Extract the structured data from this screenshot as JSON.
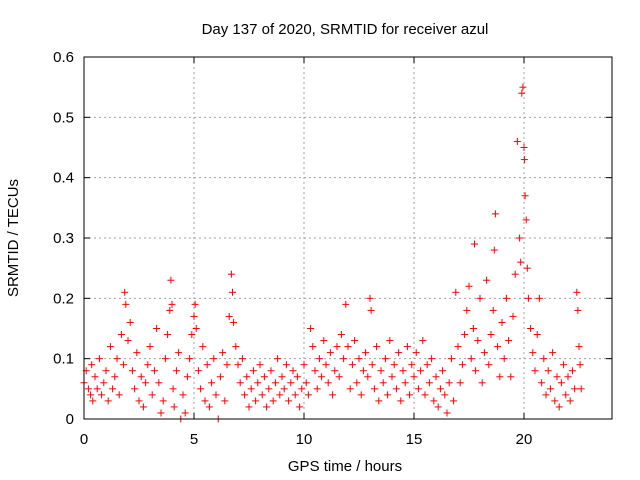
{
  "chart_data": {
    "type": "scatter",
    "title": "Day 137 of 2020, SRMTID for receiver azul",
    "xlabel": "GPS time / hours",
    "ylabel": "SRMTID / TECUs",
    "xlim": [
      0,
      24
    ],
    "ylim": [
      0,
      0.6
    ],
    "xticks": [
      0,
      5,
      10,
      15,
      20
    ],
    "yticks": [
      0,
      0.1,
      0.2,
      0.3,
      0.4,
      0.5,
      0.6
    ],
    "xtick_labels": [
      "0",
      "5",
      "10",
      "15",
      "20"
    ],
    "ytick_labels": [
      "0",
      "0.1",
      "0.2",
      "0.3",
      "0.4",
      "0.5",
      "0.6"
    ],
    "grid": true,
    "marker": "+",
    "color": "#ff0000",
    "series": [
      {
        "name": "SRMTID",
        "points": [
          [
            0.0,
            0.06
          ],
          [
            0.1,
            0.08
          ],
          [
            0.2,
            0.05
          ],
          [
            0.3,
            0.04
          ],
          [
            0.35,
            0.09
          ],
          [
            0.4,
            0.03
          ],
          [
            0.5,
            0.07
          ],
          [
            0.6,
            0.05
          ],
          [
            0.7,
            0.1
          ],
          [
            0.8,
            0.04
          ],
          [
            0.9,
            0.06
          ],
          [
            1.0,
            0.08
          ],
          [
            1.1,
            0.03
          ],
          [
            1.2,
            0.12
          ],
          [
            1.3,
            0.05
          ],
          [
            1.4,
            0.07
          ],
          [
            1.5,
            0.1
          ],
          [
            1.6,
            0.04
          ],
          [
            1.7,
            0.14
          ],
          [
            1.8,
            0.09
          ],
          [
            1.85,
            0.21
          ],
          [
            1.9,
            0.19
          ],
          [
            2.0,
            0.13
          ],
          [
            2.1,
            0.16
          ],
          [
            2.2,
            0.08
          ],
          [
            2.3,
            0.05
          ],
          [
            2.4,
            0.11
          ],
          [
            2.5,
            0.03
          ],
          [
            2.6,
            0.07
          ],
          [
            2.7,
            0.02
          ],
          [
            2.8,
            0.06
          ],
          [
            2.9,
            0.09
          ],
          [
            3.0,
            0.12
          ],
          [
            3.1,
            0.04
          ],
          [
            3.2,
            0.08
          ],
          [
            3.3,
            0.15
          ],
          [
            3.4,
            0.06
          ],
          [
            3.5,
            0.01
          ],
          [
            3.6,
            0.03
          ],
          [
            3.7,
            0.1
          ],
          [
            3.8,
            0.14
          ],
          [
            3.9,
            0.18
          ],
          [
            3.95,
            0.23
          ],
          [
            4.0,
            0.19
          ],
          [
            4.05,
            0.05
          ],
          [
            4.1,
            0.02
          ],
          [
            4.2,
            0.08
          ],
          [
            4.3,
            0.11
          ],
          [
            4.4,
            0.0
          ],
          [
            4.5,
            0.04
          ],
          [
            4.6,
            0.01
          ],
          [
            4.7,
            0.07
          ],
          [
            4.8,
            0.1
          ],
          [
            4.9,
            0.14
          ],
          [
            5.0,
            0.17
          ],
          [
            5.05,
            0.19
          ],
          [
            5.1,
            0.15
          ],
          [
            5.2,
            0.08
          ],
          [
            5.3,
            0.05
          ],
          [
            5.4,
            0.12
          ],
          [
            5.5,
            0.03
          ],
          [
            5.6,
            0.09
          ],
          [
            5.7,
            0.02
          ],
          [
            5.8,
            0.06
          ],
          [
            5.9,
            0.1
          ],
          [
            6.0,
            0.04
          ],
          [
            6.1,
            0.0
          ],
          [
            6.2,
            0.07
          ],
          [
            6.3,
            0.11
          ],
          [
            6.4,
            0.03
          ],
          [
            6.5,
            0.09
          ],
          [
            6.6,
            0.17
          ],
          [
            6.7,
            0.24
          ],
          [
            6.75,
            0.21
          ],
          [
            6.8,
            0.16
          ],
          [
            6.9,
            0.12
          ],
          [
            7.0,
            0.09
          ],
          [
            7.1,
            0.06
          ],
          [
            7.2,
            0.1
          ],
          [
            7.3,
            0.04
          ],
          [
            7.4,
            0.07
          ],
          [
            7.5,
            0.02
          ],
          [
            7.6,
            0.05
          ],
          [
            7.7,
            0.08
          ],
          [
            7.8,
            0.03
          ],
          [
            7.9,
            0.06
          ],
          [
            8.0,
            0.09
          ],
          [
            8.1,
            0.04
          ],
          [
            8.2,
            0.07
          ],
          [
            8.3,
            0.02
          ],
          [
            8.4,
            0.05
          ],
          [
            8.5,
            0.08
          ],
          [
            8.6,
            0.03
          ],
          [
            8.7,
            0.06
          ],
          [
            8.8,
            0.1
          ],
          [
            8.9,
            0.04
          ],
          [
            9.0,
            0.07
          ],
          [
            9.1,
            0.05
          ],
          [
            9.2,
            0.09
          ],
          [
            9.3,
            0.03
          ],
          [
            9.4,
            0.06
          ],
          [
            9.5,
            0.08
          ],
          [
            9.6,
            0.04
          ],
          [
            9.7,
            0.07
          ],
          [
            9.8,
            0.02
          ],
          [
            9.9,
            0.05
          ],
          [
            10.0,
            0.09
          ],
          [
            10.1,
            0.06
          ],
          [
            10.2,
            0.04
          ],
          [
            10.3,
            0.15
          ],
          [
            10.4,
            0.12
          ],
          [
            10.5,
            0.08
          ],
          [
            10.6,
            0.05
          ],
          [
            10.7,
            0.1
          ],
          [
            10.8,
            0.07
          ],
          [
            10.9,
            0.13
          ],
          [
            11.0,
            0.09
          ],
          [
            11.1,
            0.06
          ],
          [
            11.2,
            0.11
          ],
          [
            11.3,
            0.04
          ],
          [
            11.4,
            0.08
          ],
          [
            11.5,
            0.12
          ],
          [
            11.6,
            0.07
          ],
          [
            11.7,
            0.14
          ],
          [
            11.8,
            0.1
          ],
          [
            11.9,
            0.19
          ],
          [
            12.0,
            0.12
          ],
          [
            12.1,
            0.05
          ],
          [
            12.2,
            0.09
          ],
          [
            12.3,
            0.13
          ],
          [
            12.4,
            0.06
          ],
          [
            12.5,
            0.1
          ],
          [
            12.6,
            0.04
          ],
          [
            12.7,
            0.08
          ],
          [
            12.8,
            0.11
          ],
          [
            12.9,
            0.07
          ],
          [
            13.0,
            0.2
          ],
          [
            13.05,
            0.18
          ],
          [
            13.1,
            0.09
          ],
          [
            13.2,
            0.05
          ],
          [
            13.3,
            0.12
          ],
          [
            13.4,
            0.03
          ],
          [
            13.5,
            0.08
          ],
          [
            13.6,
            0.06
          ],
          [
            13.7,
            0.1
          ],
          [
            13.8,
            0.04
          ],
          [
            13.9,
            0.13
          ],
          [
            14.0,
            0.07
          ],
          [
            14.1,
            0.09
          ],
          [
            14.2,
            0.05
          ],
          [
            14.3,
            0.11
          ],
          [
            14.4,
            0.03
          ],
          [
            14.5,
            0.08
          ],
          [
            14.6,
            0.06
          ],
          [
            14.7,
            0.12
          ],
          [
            14.8,
            0.04
          ],
          [
            14.9,
            0.09
          ],
          [
            15.0,
            0.07
          ],
          [
            15.1,
            0.11
          ],
          [
            15.2,
            0.05
          ],
          [
            15.3,
            0.08
          ],
          [
            15.4,
            0.13
          ],
          [
            15.5,
            0.04
          ],
          [
            15.6,
            0.09
          ],
          [
            15.7,
            0.06
          ],
          [
            15.8,
            0.1
          ],
          [
            15.9,
            0.03
          ],
          [
            16.0,
            0.07
          ],
          [
            16.1,
            0.02
          ],
          [
            16.2,
            0.05
          ],
          [
            16.3,
            0.08
          ],
          [
            16.4,
            0.04
          ],
          [
            16.5,
            0.01
          ],
          [
            16.6,
            0.06
          ],
          [
            16.7,
            0.1
          ],
          [
            16.8,
            0.03
          ],
          [
            16.9,
            0.21
          ],
          [
            17.0,
            0.12
          ],
          [
            17.1,
            0.06
          ],
          [
            17.2,
            0.09
          ],
          [
            17.3,
            0.14
          ],
          [
            17.4,
            0.18
          ],
          [
            17.5,
            0.22
          ],
          [
            17.6,
            0.1
          ],
          [
            17.7,
            0.15
          ],
          [
            17.75,
            0.29
          ],
          [
            17.8,
            0.08
          ],
          [
            17.9,
            0.13
          ],
          [
            18.0,
            0.2
          ],
          [
            18.1,
            0.06
          ],
          [
            18.2,
            0.11
          ],
          [
            18.3,
            0.23
          ],
          [
            18.4,
            0.09
          ],
          [
            18.5,
            0.14
          ],
          [
            18.6,
            0.18
          ],
          [
            18.65,
            0.28
          ],
          [
            18.7,
            0.34
          ],
          [
            18.8,
            0.12
          ],
          [
            18.9,
            0.07
          ],
          [
            19.0,
            0.16
          ],
          [
            19.1,
            0.1
          ],
          [
            19.2,
            0.2
          ],
          [
            19.3,
            0.13
          ],
          [
            19.4,
            0.07
          ],
          [
            19.5,
            0.17
          ],
          [
            19.6,
            0.24
          ],
          [
            19.7,
            0.46
          ],
          [
            19.8,
            0.3
          ],
          [
            19.85,
            0.26
          ],
          [
            19.9,
            0.54
          ],
          [
            19.95,
            0.55
          ],
          [
            20.0,
            0.45
          ],
          [
            20.02,
            0.43
          ],
          [
            20.05,
            0.37
          ],
          [
            20.1,
            0.33
          ],
          [
            20.15,
            0.25
          ],
          [
            20.2,
            0.2
          ],
          [
            20.3,
            0.15
          ],
          [
            20.4,
            0.11
          ],
          [
            20.5,
            0.08
          ],
          [
            20.6,
            0.14
          ],
          [
            20.7,
            0.2
          ],
          [
            20.8,
            0.06
          ],
          [
            20.9,
            0.1
          ],
          [
            21.0,
            0.04
          ],
          [
            21.1,
            0.08
          ],
          [
            21.2,
            0.05
          ],
          [
            21.3,
            0.11
          ],
          [
            21.4,
            0.03
          ],
          [
            21.5,
            0.07
          ],
          [
            21.6,
            0.02
          ],
          [
            21.7,
            0.06
          ],
          [
            21.8,
            0.09
          ],
          [
            21.9,
            0.04
          ],
          [
            22.0,
            0.07
          ],
          [
            22.1,
            0.03
          ],
          [
            22.2,
            0.08
          ],
          [
            22.3,
            0.05
          ],
          [
            22.4,
            0.21
          ],
          [
            22.45,
            0.18
          ],
          [
            22.5,
            0.12
          ],
          [
            22.55,
            0.09
          ],
          [
            22.6,
            0.05
          ]
        ]
      }
    ]
  }
}
